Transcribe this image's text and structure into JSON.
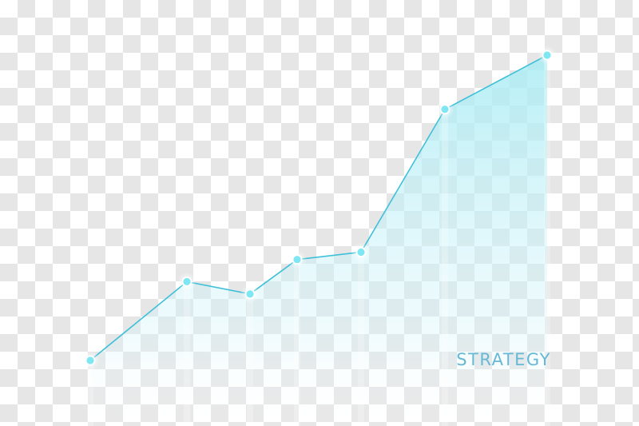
{
  "chart_data": {
    "type": "line",
    "label": "STRATEGY",
    "x": [
      1,
      2,
      3,
      4,
      5,
      6,
      7
    ],
    "values": [
      1.0,
      2.6,
      2.35,
      3.05,
      3.2,
      6.1,
      7.2
    ],
    "ylim": [
      0,
      8
    ],
    "grid": false,
    "legend": "none",
    "line_color": "#40c0d8",
    "fill_color": "#a8ecf4",
    "marker_color": "#7fe7f3"
  }
}
